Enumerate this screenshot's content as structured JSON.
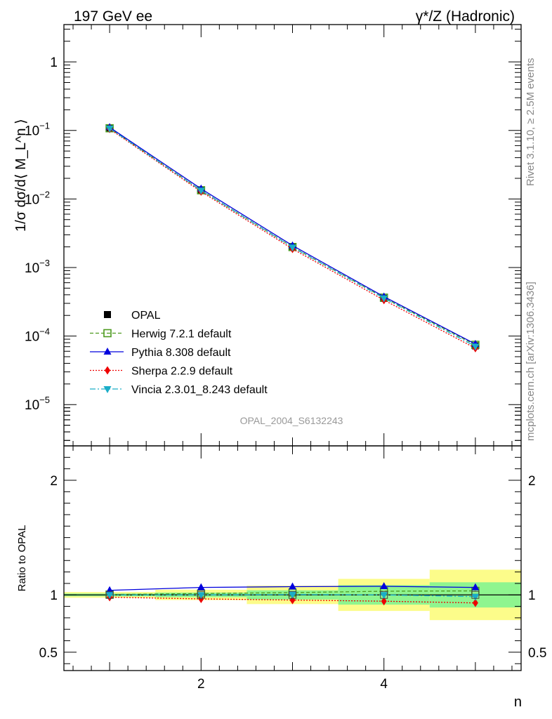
{
  "header": {
    "left": "197 GeV ee",
    "right": "γ*/Z (Hadronic)"
  },
  "side_text": {
    "rivet": "Rivet 3.1.10, ≥ 2.5M events",
    "mcplots": "mcplots.cern.ch [arXiv:1306.3436]"
  },
  "watermark": "OPAL_2004_S6132243",
  "colors": {
    "data": "#000000",
    "herwig": "#4d9a1f",
    "pythia": "#0000dd",
    "sherpa": "#ee0000",
    "vincia": "#1aadc8",
    "band_inner": "#8ff58f",
    "band_outer": "#fcfc8a"
  },
  "chart_data": [
    {
      "type": "scatter",
      "panel": "main",
      "ylabel": "1/σ dσ/d⟨ M_L^n ⟩",
      "yscale": "log",
      "ylim": [
        2.5e-06,
        3.5
      ],
      "xlim": [
        0.5,
        5.5
      ],
      "yticks": [
        {
          "base": "1",
          "exp": ""
        },
        {
          "base": "10",
          "exp": "−1"
        },
        {
          "base": "10",
          "exp": "−2"
        },
        {
          "base": "10",
          "exp": "−3"
        },
        {
          "base": "10",
          "exp": "−4"
        },
        {
          "base": "10",
          "exp": "−5"
        }
      ],
      "x": [
        1,
        2,
        3,
        4,
        5
      ],
      "series": [
        {
          "name": "OPAL",
          "values": [
            0.107,
            0.0133,
            0.00196,
            0.000355,
            7.2e-05
          ],
          "marker": "square",
          "style": "points"
        },
        {
          "name": "Herwig 7.2.1 default",
          "values": [
            0.1075,
            0.0134,
            0.00199,
            0.000363,
            7.45e-05
          ],
          "marker": "open-square",
          "style": "dashed"
        },
        {
          "name": "Pythia 8.308 default",
          "values": [
            0.111,
            0.0141,
            0.00209,
            0.000376,
            7.65e-05
          ],
          "marker": "triangle-up",
          "style": "solid"
        },
        {
          "name": "Sherpa 2.2.9 default",
          "values": [
            0.105,
            0.0128,
            0.00187,
            0.000335,
            6.65e-05
          ],
          "marker": "diamond",
          "style": "dotted"
        },
        {
          "name": "Vincia 2.3.01_8.243 default",
          "values": [
            0.107,
            0.0133,
            0.00197,
            0.000357,
            7.08e-05
          ],
          "marker": "triangle-down",
          "style": "dashdot"
        }
      ]
    },
    {
      "type": "scatter",
      "panel": "ratio",
      "ylabel": "Ratio to OPAL",
      "xlabel": "n",
      "ylim": [
        0.34,
        2.3
      ],
      "xlim": [
        0.5,
        5.5
      ],
      "xticks": [
        "2",
        "4"
      ],
      "yticks": [
        "2",
        "1",
        "0.5"
      ],
      "x": [
        1,
        2,
        3,
        4,
        5
      ],
      "bands": {
        "inner": [
          0.012,
          0.02,
          0.04,
          0.085,
          0.11
        ],
        "outer": [
          0.025,
          0.045,
          0.08,
          0.14,
          0.22
        ]
      },
      "series": [
        {
          "name": "Herwig 7.2.1 default",
          "values": [
            1.003,
            1.012,
            1.02,
            1.032,
            1.035
          ]
        },
        {
          "name": "Pythia 8.308 default",
          "values": [
            1.04,
            1.065,
            1.072,
            1.075,
            1.065
          ]
        },
        {
          "name": "Sherpa 2.2.9 default",
          "values": [
            0.98,
            0.965,
            0.955,
            0.945,
            0.93
          ]
        },
        {
          "name": "Vincia 2.3.01_8.243 default",
          "values": [
            1.0,
            1.0,
            1.003,
            1.0,
            0.985
          ]
        }
      ]
    }
  ]
}
